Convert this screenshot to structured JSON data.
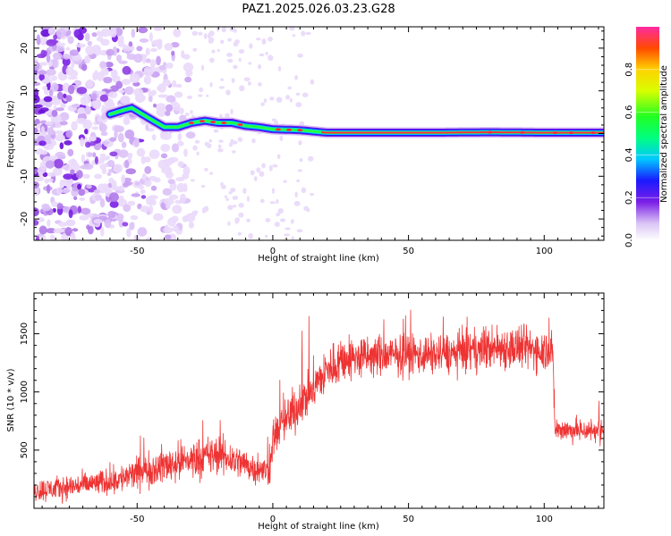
{
  "title": "PAZ1.2025.026.03.23.G28",
  "chart_data": [
    {
      "type": "heatmap",
      "xlabel": "Height of straight line (km)",
      "ylabel": "Frequency (Hz)",
      "xlim": [
        -88,
        122
      ],
      "ylim": [
        -25,
        25
      ],
      "xticks": [
        -50,
        0,
        50,
        100
      ],
      "yticks": [
        -20,
        -10,
        0,
        10,
        20
      ],
      "colorbar": {
        "label": "Normalized spectral amplitude",
        "range": [
          0,
          1
        ],
        "ticks": [
          "0.0",
          "0.2",
          "0.4",
          "0.6",
          "0.8"
        ]
      },
      "ridge": {
        "x": [
          -60,
          -55,
          -52,
          -48,
          -44,
          -40,
          -35,
          -30,
          -25,
          -20,
          -15,
          -10,
          -5,
          0,
          10,
          15,
          20,
          40,
          60,
          80,
          100,
          122
        ],
        "y": [
          4.5,
          5.5,
          6,
          4.5,
          3,
          1.5,
          1.5,
          2.5,
          3,
          2.5,
          2.5,
          1.8,
          1.5,
          1,
          0.8,
          0.5,
          0.2,
          0.2,
          0.2,
          0.3,
          0.2,
          0.2
        ]
      }
    },
    {
      "type": "line",
      "xlabel": "Height of straight line (km)",
      "ylabel": "SNR (10 * v/v)",
      "xlim": [
        -88,
        122
      ],
      "ylim": [
        0,
        1850
      ],
      "xticks": [
        -50,
        0,
        50,
        100
      ],
      "yticks": [
        500,
        1000,
        1500
      ],
      "series": [
        {
          "color": "#ee3333",
          "x": [
            -88,
            -80,
            -70,
            -60,
            -55,
            -50,
            -40,
            -30,
            -20,
            -10,
            -5,
            -1,
            0,
            5,
            10,
            15,
            20,
            25,
            30,
            40,
            50,
            60,
            70,
            80,
            90,
            100,
            103,
            104,
            110,
            122
          ],
          "y": [
            150,
            170,
            200,
            230,
            260,
            300,
            370,
            420,
            460,
            380,
            320,
            330,
            600,
            760,
            900,
            1040,
            1180,
            1280,
            1290,
            1310,
            1320,
            1320,
            1340,
            1380,
            1380,
            1360,
            1380,
            680,
            670,
            670
          ],
          "noise": [
            90,
            90,
            90,
            100,
            110,
            120,
            140,
            150,
            150,
            120,
            110,
            110,
            150,
            170,
            180,
            180,
            180,
            180,
            170,
            160,
            150,
            150,
            150,
            170,
            170,
            160,
            170,
            90,
            90,
            90
          ]
        }
      ]
    }
  ]
}
